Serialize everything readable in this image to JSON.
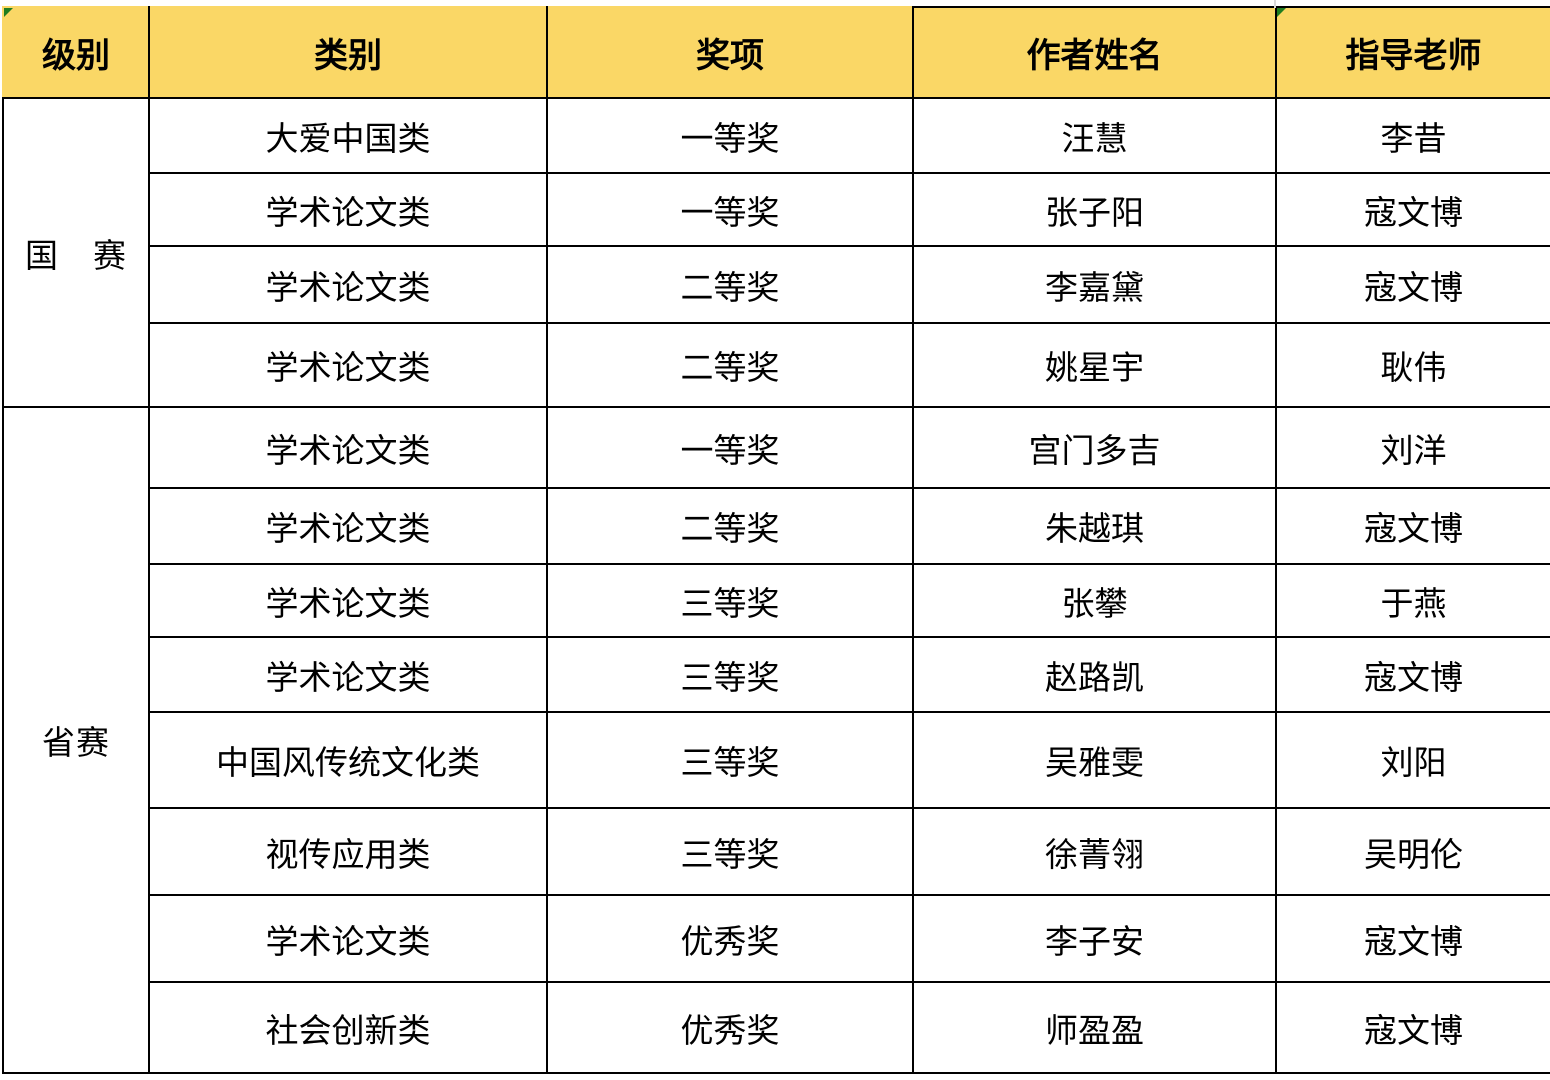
{
  "table": {
    "columns": [
      "级别",
      "类别",
      "奖项",
      "作者姓名",
      "指导老师"
    ],
    "groups": [
      {
        "level": "国　赛",
        "rows": [
          {
            "category": "大爱中国类",
            "award": "一等奖",
            "author": "汪慧",
            "teacher": "李昔"
          },
          {
            "category": "学术论文类",
            "award": "一等奖",
            "author": "张子阳",
            "teacher": "寇文博"
          },
          {
            "category": "学术论文类",
            "award": "二等奖",
            "author": "李嘉黛",
            "teacher": "寇文博"
          },
          {
            "category": "学术论文类",
            "award": "二等奖",
            "author": "姚星宇",
            "teacher": "耿伟"
          }
        ]
      },
      {
        "level": "省赛",
        "rows": [
          {
            "category": "学术论文类",
            "award": "一等奖",
            "author": "宫门多吉",
            "teacher": "刘洋"
          },
          {
            "category": "学术论文类",
            "award": "二等奖",
            "author": "朱越琪",
            "teacher": "寇文博"
          },
          {
            "category": "学术论文类",
            "award": "三等奖",
            "author": "张攀",
            "teacher": "于燕"
          },
          {
            "category": "学术论文类",
            "award": "三等奖",
            "author": "赵路凯",
            "teacher": "寇文博"
          },
          {
            "category": "中国风传统文化类",
            "award": "三等奖",
            "author": "吴雅雯",
            "teacher": "刘阳"
          },
          {
            "category": "视传应用类",
            "award": "三等奖",
            "author": "徐菁翎",
            "teacher": "吴明伦"
          },
          {
            "category": "学术论文类",
            "award": "优秀奖",
            "author": "李子安",
            "teacher": "寇文博"
          },
          {
            "category": "社会创新类",
            "award": "优秀奖",
            "author": "师盈盈",
            "teacher": "寇文博"
          }
        ]
      }
    ]
  },
  "colors": {
    "header_bg": "#FAD766",
    "border": "#000000",
    "error_marker_green": "#1F7D1F"
  },
  "icons": {
    "cell_error_marker": "excel-green-triangle"
  }
}
